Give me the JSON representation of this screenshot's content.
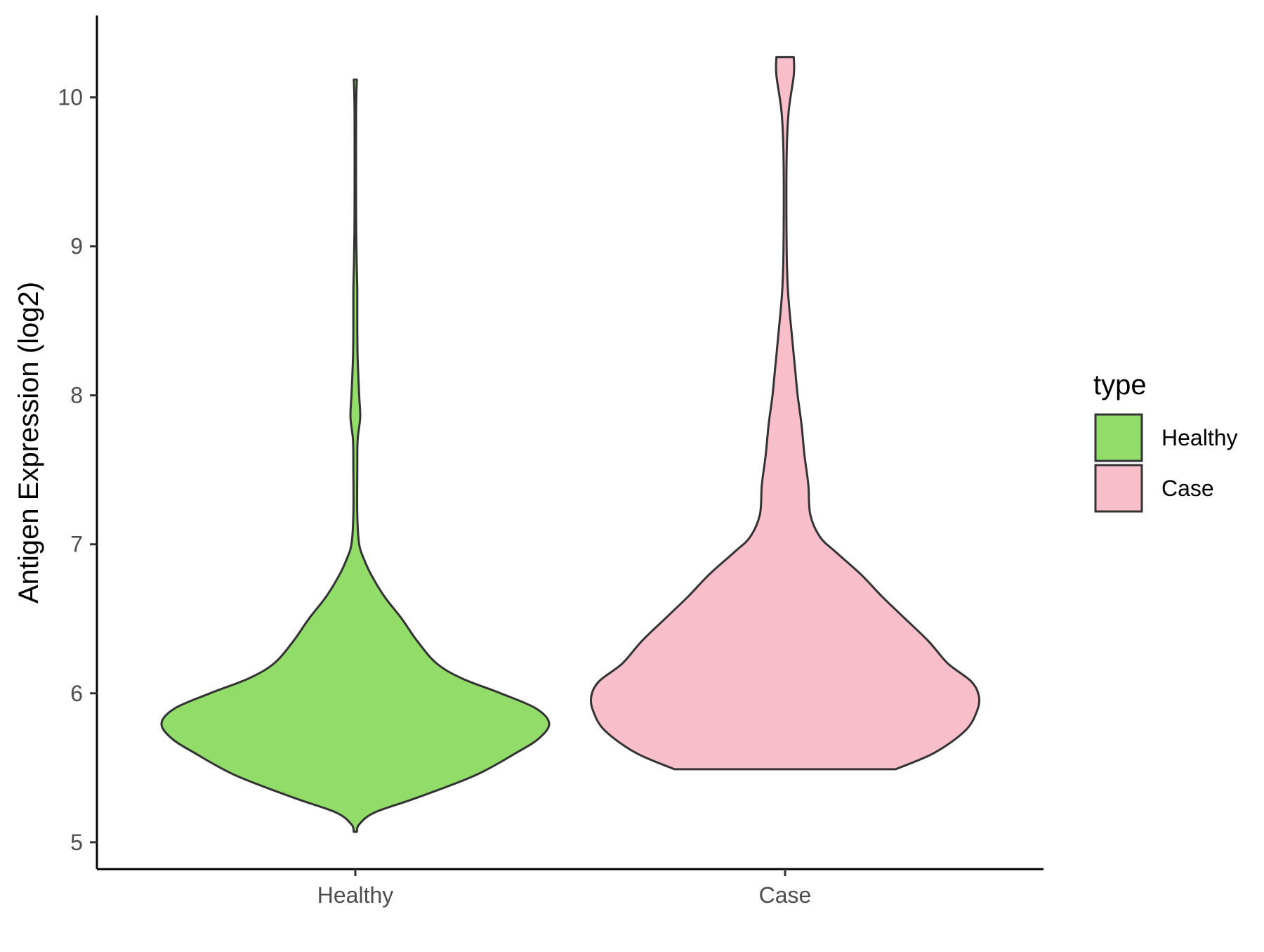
{
  "chart_data": {
    "type": "violin",
    "title": "",
    "xlabel": "",
    "ylabel": "Antigen Expression (log2)",
    "ylim": [
      4.82,
      10.55
    ],
    "yticks": [
      5,
      6,
      7,
      8,
      9,
      10
    ],
    "ytick_labels": [
      "5",
      "6",
      "7",
      "8",
      "9",
      "10"
    ],
    "categories": [
      "Healthy",
      "Case"
    ],
    "grid": false,
    "legend": {
      "title": "type",
      "placement": "right",
      "entries": [
        {
          "label": "Healthy",
          "color": "#92DC6A"
        },
        {
          "label": "Case",
          "color": "#F8BFCB"
        }
      ]
    },
    "series": [
      {
        "name": "Healthy",
        "color": "#92DC6A",
        "min": 5.07,
        "max": 10.12,
        "density_profile": [
          [
            5.07,
            0.008
          ],
          [
            5.12,
            0.02
          ],
          [
            5.2,
            0.1
          ],
          [
            5.3,
            0.32
          ],
          [
            5.45,
            0.62
          ],
          [
            5.6,
            0.83
          ],
          [
            5.7,
            0.95
          ],
          [
            5.8,
            1.0
          ],
          [
            5.9,
            0.93
          ],
          [
            6.0,
            0.75
          ],
          [
            6.1,
            0.55
          ],
          [
            6.2,
            0.42
          ],
          [
            6.35,
            0.32
          ],
          [
            6.5,
            0.24
          ],
          [
            6.65,
            0.15
          ],
          [
            6.8,
            0.08
          ],
          [
            6.9,
            0.045
          ],
          [
            7.0,
            0.02
          ],
          [
            7.2,
            0.01
          ],
          [
            7.5,
            0.01
          ],
          [
            7.7,
            0.012
          ],
          [
            7.85,
            0.025
          ],
          [
            8.0,
            0.02
          ],
          [
            8.25,
            0.012
          ],
          [
            8.45,
            0.01
          ],
          [
            8.7,
            0.01
          ],
          [
            8.9,
            0.007
          ],
          [
            9.2,
            0.004
          ],
          [
            9.9,
            0.004
          ],
          [
            10.12,
            0.008
          ]
        ]
      },
      {
        "name": "Case",
        "color": "#F8BFCB",
        "min": 5.49,
        "max": 10.27,
        "density_profile": [
          [
            5.49,
            0.57
          ],
          [
            5.6,
            0.77
          ],
          [
            5.75,
            0.93
          ],
          [
            5.88,
            0.99
          ],
          [
            5.98,
            1.0
          ],
          [
            6.08,
            0.96
          ],
          [
            6.2,
            0.84
          ],
          [
            6.35,
            0.74
          ],
          [
            6.5,
            0.62
          ],
          [
            6.65,
            0.5
          ],
          [
            6.8,
            0.39
          ],
          [
            6.95,
            0.26
          ],
          [
            7.05,
            0.18
          ],
          [
            7.2,
            0.13
          ],
          [
            7.4,
            0.12
          ],
          [
            7.6,
            0.1
          ],
          [
            7.8,
            0.085
          ],
          [
            8.0,
            0.065
          ],
          [
            8.2,
            0.05
          ],
          [
            8.4,
            0.035
          ],
          [
            8.7,
            0.015
          ],
          [
            9.0,
            0.008
          ],
          [
            9.6,
            0.008
          ],
          [
            9.9,
            0.018
          ],
          [
            10.15,
            0.045
          ],
          [
            10.27,
            0.045
          ]
        ]
      }
    ]
  }
}
